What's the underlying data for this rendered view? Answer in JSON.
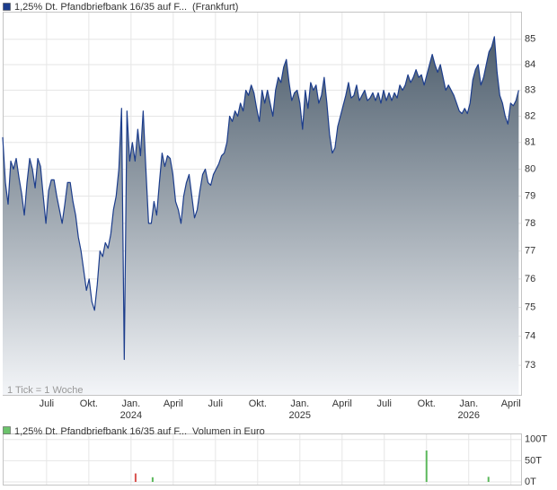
{
  "chart_data": [
    {
      "type": "area",
      "title": "1,25% Dt. Pfandbriefbank 16/35 auf F...",
      "subtitle": "(Frankfurt)",
      "annotation": "1 Tick = 1 Woche",
      "color": "#1c3d8c",
      "legend_color": "#1c3d8c",
      "fill_top": "#4e5e6d",
      "fill_bottom": "#f3f5f8",
      "log": true,
      "grid": true,
      "xlim": [
        2023.24,
        2026.31
      ],
      "ylim": [
        72,
        86.1
      ],
      "yticks": [
        73,
        74,
        75,
        76,
        77,
        78,
        79,
        80,
        81,
        82,
        83,
        84,
        85
      ],
      "xticks": [
        {
          "value": 2023.5,
          "label": "Juli"
        },
        {
          "value": 2023.75,
          "label": "Okt."
        },
        {
          "value": 2024,
          "label": "Jan.",
          "sublabel": "2024"
        },
        {
          "value": 2024.25,
          "label": "April"
        },
        {
          "value": 2024.5,
          "label": "Juli"
        },
        {
          "value": 2024.75,
          "label": "Okt."
        },
        {
          "value": 2025,
          "label": "Jan.",
          "sublabel": "2025"
        },
        {
          "value": 2025.25,
          "label": "April"
        },
        {
          "value": 2025.5,
          "label": "Juli"
        },
        {
          "value": 2025.75,
          "label": "Okt."
        },
        {
          "value": 2026,
          "label": "Jan.",
          "sublabel": "2026"
        },
        {
          "value": 2026.25,
          "label": "April"
        }
      ],
      "x": [
        2023.24,
        2023.256,
        2023.272,
        2023.288,
        2023.304,
        2023.32,
        2023.336,
        2023.352,
        2023.368,
        2023.384,
        2023.4,
        2023.416,
        2023.432,
        2023.448,
        2023.464,
        2023.48,
        2023.496,
        2023.512,
        2023.528,
        2023.544,
        2023.56,
        2023.576,
        2023.592,
        2023.608,
        2023.624,
        2023.64,
        2023.656,
        2023.672,
        2023.688,
        2023.704,
        2023.72,
        2023.736,
        2023.752,
        2023.768,
        2023.784,
        2023.8,
        2023.816,
        2023.832,
        2023.848,
        2023.864,
        2023.88,
        2023.896,
        2023.912,
        2023.928,
        2023.944,
        2023.96,
        2023.976,
        2023.992,
        2024.008,
        2024.024,
        2024.04,
        2024.056,
        2024.072,
        2024.088,
        2024.104,
        2024.12,
        2024.136,
        2024.152,
        2024.168,
        2024.184,
        2024.2,
        2024.216,
        2024.232,
        2024.248,
        2024.264,
        2024.28,
        2024.296,
        2024.312,
        2024.328,
        2024.344,
        2024.36,
        2024.376,
        2024.392,
        2024.408,
        2024.424,
        2024.44,
        2024.456,
        2024.472,
        2024.488,
        2024.504,
        2024.52,
        2024.536,
        2024.552,
        2024.568,
        2024.584,
        2024.6,
        2024.616,
        2024.632,
        2024.648,
        2024.664,
        2024.68,
        2024.696,
        2024.712,
        2024.728,
        2024.744,
        2024.76,
        2024.776,
        2024.792,
        2024.808,
        2024.824,
        2024.84,
        2024.856,
        2024.872,
        2024.888,
        2024.904,
        2024.92,
        2024.936,
        2024.952,
        2024.968,
        2024.984,
        2025,
        2025.016,
        2025.032,
        2025.048,
        2025.064,
        2025.08,
        2025.096,
        2025.112,
        2025.128,
        2025.144,
        2025.16,
        2025.176,
        2025.192,
        2025.208,
        2025.224,
        2025.24,
        2025.256,
        2025.272,
        2025.288,
        2025.304,
        2025.32,
        2025.336,
        2025.352,
        2025.368,
        2025.384,
        2025.4,
        2025.416,
        2025.432,
        2025.448,
        2025.464,
        2025.48,
        2025.496,
        2025.512,
        2025.528,
        2025.544,
        2025.56,
        2025.576,
        2025.592,
        2025.608,
        2025.624,
        2025.64,
        2025.656,
        2025.672,
        2025.688,
        2025.704,
        2025.72,
        2025.736,
        2025.752,
        2025.768,
        2025.784,
        2025.8,
        2025.816,
        2025.832,
        2025.848,
        2025.864,
        2025.88,
        2025.896,
        2025.912,
        2025.928,
        2025.944,
        2025.96,
        2025.976,
        2025.992,
        2026.008,
        2026.024,
        2026.04,
        2026.056,
        2026.072,
        2026.088,
        2026.104,
        2026.12,
        2026.136,
        2026.152,
        2026.168,
        2026.184,
        2026.2,
        2026.216,
        2026.232,
        2026.248,
        2026.264,
        2026.28,
        2026.296
      ],
      "values": [
        81.2,
        79.5,
        78.7,
        80.3,
        80.0,
        80.4,
        79.7,
        79.1,
        78.3,
        79.5,
        80.4,
        80.0,
        79.3,
        80.4,
        80.1,
        79.0,
        78.0,
        79.2,
        79.6,
        79.6,
        79.0,
        78.5,
        78.0,
        78.7,
        79.5,
        79.5,
        78.8,
        78.3,
        77.5,
        77.0,
        76.3,
        75.6,
        76.0,
        75.2,
        74.9,
        75.8,
        77.0,
        76.8,
        77.3,
        77.1,
        77.6,
        78.5,
        79.0,
        80.0,
        82.3,
        73.2,
        82.2,
        80.3,
        81.0,
        80.3,
        81.5,
        80.5,
        82.2,
        80.0,
        78.0,
        78.0,
        78.8,
        78.3,
        79.5,
        80.6,
        80.1,
        80.5,
        80.4,
        79.8,
        78.8,
        78.5,
        78.0,
        79.0,
        79.5,
        79.8,
        79.0,
        78.2,
        78.5,
        79.2,
        79.8,
        80.0,
        79.5,
        79.4,
        79.8,
        80.0,
        80.2,
        80.5,
        80.6,
        81.0,
        82.0,
        81.8,
        82.2,
        82.0,
        82.5,
        82.2,
        83.0,
        82.8,
        83.2,
        82.9,
        82.3,
        81.8,
        83.0,
        82.5,
        83.0,
        82.5,
        82.0,
        83.0,
        83.5,
        83.3,
        83.9,
        84.2,
        83.3,
        82.6,
        82.9,
        83.0,
        82.5,
        81.5,
        83.0,
        82.3,
        83.3,
        83.0,
        83.2,
        82.5,
        82.8,
        83.5,
        82.5,
        81.3,
        80.6,
        80.8,
        81.6,
        82.0,
        82.4,
        82.8,
        83.3,
        82.7,
        82.8,
        83.2,
        82.6,
        82.8,
        83.0,
        82.6,
        82.7,
        82.9,
        82.6,
        82.9,
        82.5,
        83.0,
        82.6,
        82.9,
        82.6,
        82.9,
        82.7,
        83.2,
        83.0,
        83.2,
        83.6,
        83.3,
        83.5,
        83.8,
        83.5,
        83.6,
        83.2,
        83.6,
        84.0,
        84.4,
        84.0,
        83.7,
        84.0,
        83.5,
        83.0,
        83.2,
        83.0,
        82.8,
        82.5,
        82.2,
        82.1,
        82.3,
        82.1,
        82.5,
        83.4,
        83.8,
        84.0,
        83.2,
        83.5,
        84.0,
        84.5,
        84.7,
        85.1,
        83.7,
        82.8,
        82.5,
        82.0,
        81.7,
        82.5,
        82.4,
        82.6,
        83.0
      ]
    },
    {
      "type": "bar",
      "title": "1,25% Dt. Pfandbriefbank 16/35 auf F...",
      "subtitle": "Volumen in Euro",
      "legend_color": "#6cc36c",
      "grid": true,
      "xlim": [
        2023.24,
        2026.31
      ],
      "ylim": [
        0,
        110000
      ],
      "yticks": [
        {
          "value": 0,
          "label": "0T"
        },
        {
          "value": 50000,
          "label": "50T"
        },
        {
          "value": 100000,
          "label": "100T"
        }
      ],
      "x": [
        2024.027,
        2024.128,
        2025.75,
        2026.117
      ],
      "values": [
        20000,
        11000,
        74000,
        12000
      ],
      "colors": [
        "#d9534f",
        "#5cb85c",
        "#5cb85c",
        "#5cb85c"
      ]
    }
  ]
}
